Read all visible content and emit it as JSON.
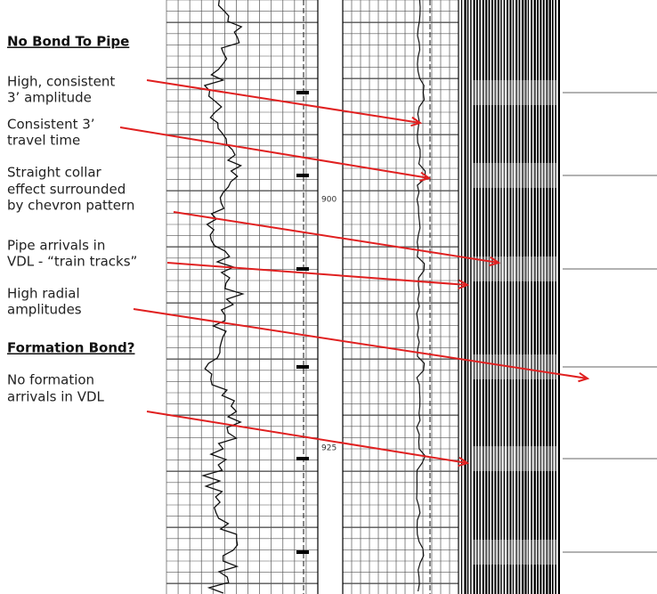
{
  "headings": [
    "No Bond To Pipe",
    "Formation Bond?"
  ],
  "annotations": [
    {
      "lines": [
        "High, consistent",
        "3’ amplitude"
      ]
    },
    {
      "lines": [
        "Consistent 3’",
        "travel time"
      ]
    },
    {
      "lines": [
        "Straight collar",
        "effect surrounded",
        "by chevron pattern"
      ]
    },
    {
      "lines": [
        "Pipe arrivals in",
        "VDL - “train tracks”"
      ]
    },
    {
      "lines": [
        "High radial",
        "amplitudes"
      ]
    },
    {
      "lines": [
        "No formation",
        "arrivals in VDL"
      ]
    }
  ],
  "depths": [
    "900",
    "925"
  ]
}
